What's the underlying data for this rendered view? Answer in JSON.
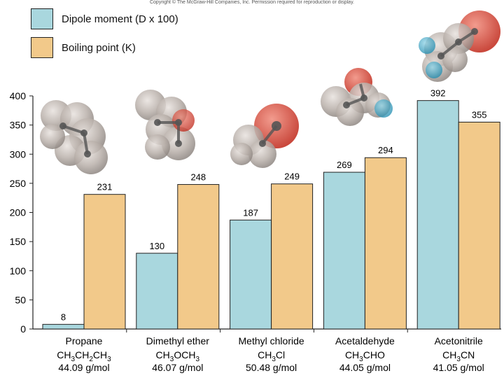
{
  "copyright": "Copyright © The McGraw-Hill Companies, Inc. Permission required for reproduction or display.",
  "colors": {
    "dipole": "#a9d7de",
    "boiling": "#f2c98a",
    "axis": "#222222"
  },
  "chart_data": {
    "type": "bar",
    "ylim": [
      0,
      400
    ],
    "yticks": [
      0,
      50,
      100,
      150,
      200,
      250,
      300,
      350,
      400
    ],
    "grid": false,
    "legend_placement": "top-left",
    "categories": [
      {
        "name": "Propane",
        "formula": [
          [
            "CH",
            ""
          ],
          [
            "3",
            "sub"
          ],
          [
            "CH",
            ""
          ],
          [
            "2",
            "sub"
          ],
          [
            "CH",
            ""
          ],
          [
            "3",
            "sub"
          ]
        ],
        "mass": "44.09 g/mol"
      },
      {
        "name": "Dimethyl ether",
        "formula": [
          [
            "CH",
            ""
          ],
          [
            "3",
            "sub"
          ],
          [
            "OCH",
            ""
          ],
          [
            "3",
            "sub"
          ]
        ],
        "mass": "46.07 g/mol"
      },
      {
        "name": "Methyl chloride",
        "formula": [
          [
            "CH",
            ""
          ],
          [
            "3",
            "sub"
          ],
          [
            "Cl",
            ""
          ]
        ],
        "mass": "50.48 g/mol"
      },
      {
        "name": "Acetaldehyde",
        "formula": [
          [
            "CH",
            ""
          ],
          [
            "3",
            "sub"
          ],
          [
            "CHO",
            ""
          ]
        ],
        "mass": "44.05 g/mol"
      },
      {
        "name": "Acetonitrile",
        "formula": [
          [
            "CH",
            ""
          ],
          [
            "3",
            "sub"
          ],
          [
            "CN",
            ""
          ]
        ],
        "mass": "41.05 g/mol"
      }
    ],
    "series": [
      {
        "name": "Dipole moment (D x 100)",
        "values": [
          8,
          130,
          187,
          269,
          392
        ]
      },
      {
        "name": "Boiling point (K)",
        "values": [
          231,
          248,
          249,
          294,
          355
        ]
      }
    ]
  }
}
